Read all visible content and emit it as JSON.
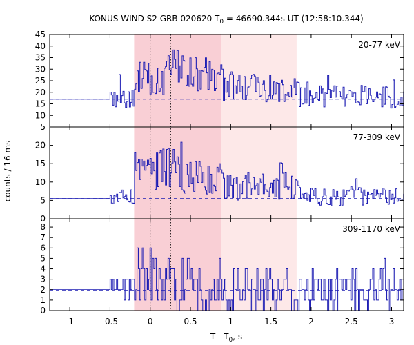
{
  "chart_data": {
    "type": "line",
    "title": {
      "prefix": "KONUS-WIND S2 GRB 020620 T",
      "sub": "0",
      "suffix": " = 46690.344s UT (12:58:10.344)"
    },
    "xlabel": {
      "prefix": "T - T",
      "sub": "0",
      "suffix": ", s"
    },
    "ylabel": "counts / 16 ms",
    "xlim": [
      -1.25,
      3.15
    ],
    "xticks": [
      -1,
      -0.5,
      0,
      0.5,
      1,
      1.5,
      2,
      2.5,
      3
    ],
    "xtick_labels": [
      "-1",
      "-0.5",
      "0",
      "0.5",
      "1",
      "1.5",
      "2",
      "2.5",
      "3"
    ],
    "bin_width_s": 0.016,
    "light_shade_interval": [
      -0.2,
      1.82
    ],
    "dark_shade_interval": [
      -0.2,
      0.88
    ],
    "dotted_markers_x": [
      0.0,
      0.256
    ],
    "colors": {
      "line": "#1f1fb4",
      "light_shade": "#fde8e8",
      "dark_shade": "#f9cfd5"
    },
    "panels": [
      {
        "name": "20-77 keV",
        "ylim": [
          5,
          45
        ],
        "yticks": [
          5,
          10,
          15,
          20,
          25,
          30,
          35,
          40,
          45
        ],
        "background_level": 17,
        "pre_trigger_level": 17,
        "data_start": -0.5,
        "segments": [
          {
            "t0": -0.5,
            "t1": -0.2,
            "mean": 17,
            "amp": 4,
            "peak": 30
          },
          {
            "t0": -0.2,
            "t1": 0.2,
            "mean": 26,
            "amp": 8,
            "peak": 33
          },
          {
            "t0": 0.2,
            "t1": 0.55,
            "mean": 30,
            "amp": 9,
            "peak": 40
          },
          {
            "t0": 0.55,
            "t1": 0.9,
            "mean": 27,
            "amp": 8,
            "peak": 38
          },
          {
            "t0": 0.9,
            "t1": 1.4,
            "mean": 23,
            "amp": 7,
            "peak": 35
          },
          {
            "t0": 1.4,
            "t1": 1.85,
            "mean": 21,
            "amp": 6,
            "peak": 30
          },
          {
            "t0": 1.85,
            "t1": 3.15,
            "mean": 18,
            "amp": 5,
            "peak": 29
          }
        ]
      },
      {
        "name": "77-309 keV",
        "ylim": [
          0,
          25
        ],
        "yticks": [
          0,
          5,
          10,
          15,
          20
        ],
        "background_level": 5.5,
        "pre_trigger_level": 5.5,
        "data_start": -0.5,
        "segments": [
          {
            "t0": -0.5,
            "t1": -0.2,
            "mean": 6,
            "amp": 2,
            "peak": 13
          },
          {
            "t0": -0.2,
            "t1": 0.05,
            "mean": 14,
            "amp": 5,
            "peak": 20
          },
          {
            "t0": 0.05,
            "t1": 0.35,
            "mean": 14,
            "amp": 6,
            "peak": 22
          },
          {
            "t0": 0.35,
            "t1": 0.9,
            "mean": 11,
            "amp": 5,
            "peak": 21
          },
          {
            "t0": 0.9,
            "t1": 1.85,
            "mean": 9,
            "amp": 4,
            "peak": 16
          },
          {
            "t0": 1.85,
            "t1": 3.15,
            "mean": 6,
            "amp": 2.5,
            "peak": 11
          }
        ]
      },
      {
        "name": "309-1170 keV",
        "ylim": [
          0,
          8.8
        ],
        "yticks": [
          0,
          1,
          2,
          3,
          4,
          5,
          6,
          7,
          8
        ],
        "background_level": 1.9,
        "pre_trigger_level": 2,
        "data_start": -0.5,
        "segments": [
          {
            "t0": -0.5,
            "t1": -0.2,
            "mean": 2,
            "amp": 1.5,
            "peak": 4
          },
          {
            "t0": -0.2,
            "t1": 0.3,
            "mean": 3.5,
            "amp": 3,
            "peak": 8
          },
          {
            "t0": 0.3,
            "t1": 0.9,
            "mean": 2.5,
            "amp": 2.5,
            "peak": 6
          },
          {
            "t0": 0.9,
            "t1": 1.85,
            "mean": 2,
            "amp": 2,
            "peak": 5
          },
          {
            "t0": 1.85,
            "t1": 3.15,
            "mean": 2,
            "amp": 2,
            "peak": 5
          }
        ]
      }
    ]
  }
}
